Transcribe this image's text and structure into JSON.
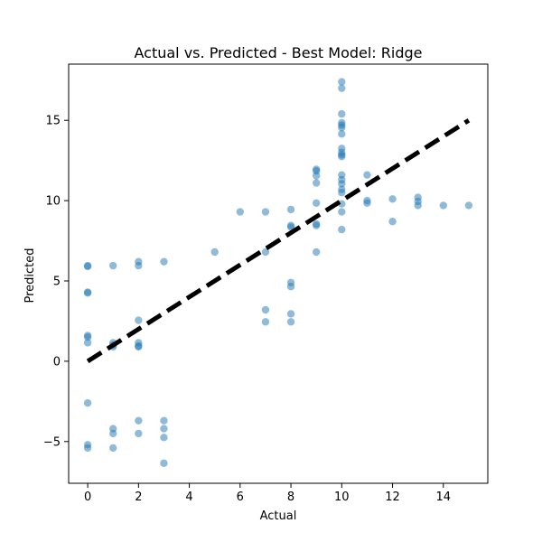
{
  "chart_data": {
    "type": "scatter",
    "title": "Actual vs. Predicted - Best Model: Ridge",
    "xlabel": "Actual",
    "ylabel": "Predicted",
    "xlim": [
      -0.75,
      15.75
    ],
    "ylim": [
      -7.6,
      18.5
    ],
    "xticks": [
      0,
      2,
      4,
      6,
      8,
      10,
      12,
      14
    ],
    "yticks": [
      -5,
      0,
      5,
      10,
      15
    ],
    "grid": false,
    "colors": {
      "points": "#1f77b4",
      "reference_line": "#000000"
    },
    "series": [
      {
        "values_desc": "points",
        "points": [
          [
            0,
            5.95
          ],
          [
            0,
            5.9
          ],
          [
            0,
            4.3
          ],
          [
            0,
            4.25
          ],
          [
            0,
            1.6
          ],
          [
            0,
            1.5
          ],
          [
            0,
            1.15
          ],
          [
            0,
            -2.6
          ],
          [
            0,
            -5.2
          ],
          [
            0,
            -5.4
          ],
          [
            1,
            5.95
          ],
          [
            1,
            1.15
          ],
          [
            1,
            1.0
          ],
          [
            1,
            0.9
          ],
          [
            1,
            -4.2
          ],
          [
            1,
            -4.5
          ],
          [
            1,
            -5.4
          ],
          [
            2,
            6.2
          ],
          [
            2,
            5.95
          ],
          [
            2,
            2.55
          ],
          [
            2,
            1.15
          ],
          [
            2,
            0.95
          ],
          [
            2,
            0.9
          ],
          [
            2,
            -3.7
          ],
          [
            2,
            -4.5
          ],
          [
            3,
            6.2
          ],
          [
            3,
            -3.7
          ],
          [
            3,
            -4.2
          ],
          [
            3,
            -4.75
          ],
          [
            3,
            -6.35
          ],
          [
            5,
            6.8
          ],
          [
            6,
            9.3
          ],
          [
            7,
            9.3
          ],
          [
            7,
            6.8
          ],
          [
            7,
            3.2
          ],
          [
            7,
            2.45
          ],
          [
            8,
            9.45
          ],
          [
            8,
            8.45
          ],
          [
            8,
            8.35
          ],
          [
            8,
            4.9
          ],
          [
            8,
            4.65
          ],
          [
            8,
            2.95
          ],
          [
            8,
            2.45
          ],
          [
            9,
            11.95
          ],
          [
            9,
            11.85
          ],
          [
            9,
            11.55
          ],
          [
            9,
            11.1
          ],
          [
            9,
            9.85
          ],
          [
            9,
            8.55
          ],
          [
            9,
            8.45
          ],
          [
            9,
            6.8
          ],
          [
            10,
            17.4
          ],
          [
            10,
            17.0
          ],
          [
            10,
            15.4
          ],
          [
            10,
            14.85
          ],
          [
            10,
            14.7
          ],
          [
            10,
            14.55
          ],
          [
            10,
            14.15
          ],
          [
            10,
            13.25
          ],
          [
            10,
            13.0
          ],
          [
            10,
            12.85
          ],
          [
            10,
            12.75
          ],
          [
            10,
            11.6
          ],
          [
            10,
            11.3
          ],
          [
            10,
            11.05
          ],
          [
            10,
            10.7
          ],
          [
            10,
            10.5
          ],
          [
            10,
            9.8
          ],
          [
            10,
            9.3
          ],
          [
            10,
            8.2
          ],
          [
            11,
            11.6
          ],
          [
            11,
            10.0
          ],
          [
            11,
            9.85
          ],
          [
            12,
            10.1
          ],
          [
            12,
            8.7
          ],
          [
            13,
            10.2
          ],
          [
            13,
            9.95
          ],
          [
            13,
            9.7
          ],
          [
            14,
            9.7
          ],
          [
            15,
            9.7
          ]
        ]
      }
    ],
    "reference_line": {
      "from": [
        0,
        0
      ],
      "to": [
        15,
        15
      ],
      "style": "dashed"
    }
  }
}
